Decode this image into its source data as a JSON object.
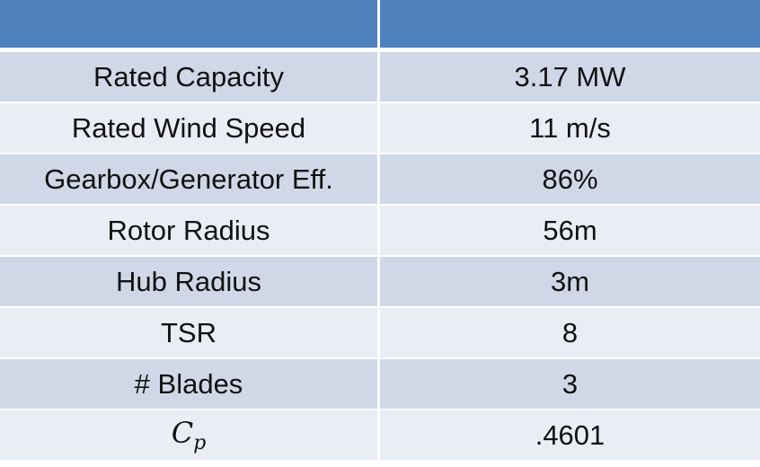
{
  "table": {
    "header": [
      "",
      ""
    ],
    "rows": [
      {
        "parameter": "Rated Capacity",
        "value": "3.17 MW"
      },
      {
        "parameter": "Rated Wind Speed",
        "value": "11 m/s"
      },
      {
        "parameter": "Gearbox/Generator Eff.",
        "value": "86%"
      },
      {
        "parameter": "Rotor Radius",
        "value": "56m"
      },
      {
        "parameter": "Hub Radius",
        "value": "3m"
      },
      {
        "parameter": "TSR",
        "value": "8"
      },
      {
        "parameter": "# Blades",
        "value": "3"
      },
      {
        "parameter_symbol": "C",
        "parameter_subscript": "p",
        "value": ".4601"
      }
    ]
  },
  "colors": {
    "header": "#4f81bd",
    "row_odd": "#d0d8e8",
    "row_even": "#e9edf4",
    "separator": "#ffffff"
  }
}
